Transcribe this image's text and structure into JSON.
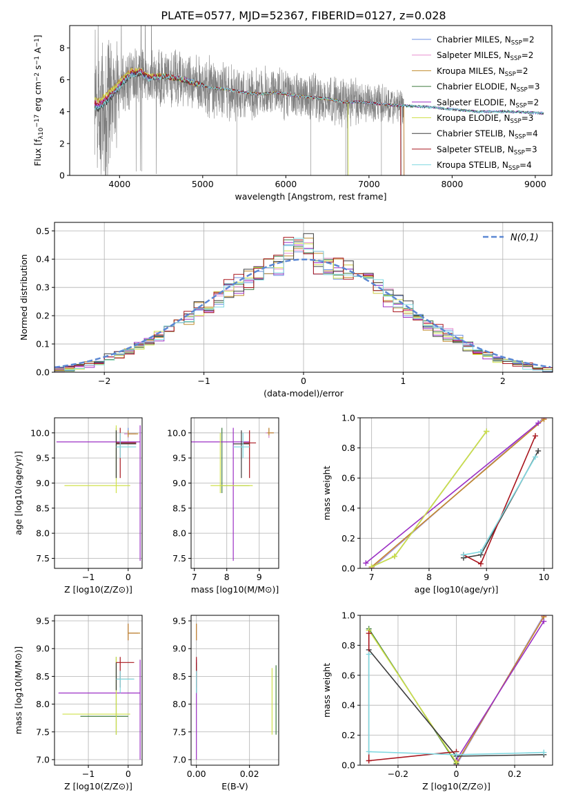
{
  "figure": {
    "title": "PLATE=0577, MJD=52367, FIBERID=0127, z=0.028"
  },
  "colors": {
    "series": [
      "#6b8fe0",
      "#e88fcf",
      "#c08a2a",
      "#3d7a3d",
      "#9b2fc4",
      "#cfe04a",
      "#3c3c3c",
      "#a8141c",
      "#7fd8e0"
    ],
    "data": "#808080",
    "grid": "#b0b0b0",
    "normal": "#5b87d3"
  },
  "chart_data": [
    {
      "id": "spectrum",
      "type": "line",
      "xlabel": "wavelength [Angstrom, rest frame]",
      "ylabel": "Flux [f_λ10^-17 erg cm^-2 s^-1 A^-1]",
      "xlim": [
        3400,
        9200
      ],
      "ylim": [
        0,
        9.4
      ],
      "xticks": [
        4000,
        5000,
        6000,
        7000,
        8000,
        9000
      ],
      "yticks": [
        0,
        2,
        4,
        6,
        8
      ],
      "grid": false,
      "legend_position": "top-right",
      "legend": [
        "Chabrier MILES, N_SSP=2",
        "Salpeter MILES, N_SSP=2",
        "Kroupa MILES, N_SSP=2",
        "Chabrier ELODIE, N_SSP=3",
        "Salpeter ELODIE, N_SSP=2",
        "Kroupa ELODIE, N_SSP=3",
        "Chabrier STELIB, N_SSP=4",
        "Salpeter STELIB, N_SSP=3",
        "Kroupa STELIB, N_SSP=4"
      ],
      "data_range": [
        3700,
        7420
      ],
      "model_ranges": [
        [
          3700,
          7420
        ],
        [
          3700,
          7420
        ],
        [
          3700,
          7420
        ],
        [
          3700,
          9100
        ],
        [
          3700,
          9100
        ],
        [
          3700,
          6750
        ],
        [
          3700,
          9100
        ],
        [
          3700,
          7380
        ],
        [
          3700,
          9100
        ]
      ],
      "continuum": {
        "x": [
          3700,
          3750,
          3850,
          3950,
          4050,
          4150,
          4250,
          4350,
          4450,
          4550,
          4700,
          4900,
          5100,
          5300,
          5500,
          5700,
          5900,
          6100,
          6300,
          6500,
          6700,
          6900,
          7100,
          7300,
          7500,
          7700,
          7900,
          8100,
          8300,
          8500,
          8700,
          8900,
          9100
        ],
        "y": [
          4.0,
          3.9,
          4.4,
          5.0,
          5.7,
          6.2,
          6.3,
          6.0,
          6.1,
          6.2,
          6.1,
          5.8,
          5.5,
          5.4,
          5.2,
          5.1,
          5.2,
          5.0,
          4.9,
          4.8,
          4.6,
          4.6,
          4.5,
          4.4,
          4.35,
          4.3,
          4.2,
          4.1,
          4.0,
          4.0,
          4.0,
          3.95,
          3.9
        ]
      }
    },
    {
      "id": "residuals",
      "type": "histogram",
      "xlabel": "(data-model)/error",
      "ylabel": "Normed distribution",
      "xlim": [
        -2.5,
        2.5
      ],
      "ylim": [
        0,
        0.53
      ],
      "xticks": [
        -2,
        -1,
        0,
        1,
        2
      ],
      "yticks": [
        0.0,
        0.1,
        0.2,
        0.3,
        0.4,
        0.5
      ],
      "grid": true,
      "legend_position": "top-right",
      "legend": [
        "N(0,1)"
      ],
      "bin_width": 0.1
    },
    {
      "id": "z-age",
      "type": "scatter",
      "xlabel": "Z [log10(Z/Z⊙)]",
      "ylabel": "age [log10(age/yr)]",
      "xlim": [
        -1.85,
        0.35
      ],
      "ylim": [
        7.3,
        10.3
      ],
      "xticks": [
        -1,
        0
      ],
      "yticks": [
        7.5,
        8.0,
        8.5,
        9.0,
        9.5,
        10.0
      ],
      "grid": true,
      "points": [
        {
          "s": 0,
          "x": 0,
          "y": 9.98,
          "ex": [
            -0.1,
            0.2
          ],
          "ey": [
            9.9,
            10.1
          ]
        },
        {
          "s": 1,
          "x": 0,
          "y": 9.98,
          "ex": [
            -0.1,
            0.2
          ],
          "ey": [
            9.9,
            10.05
          ]
        },
        {
          "s": 2,
          "x": 0,
          "y": 9.98,
          "ex": [
            0.0,
            0.25
          ],
          "ey": [
            9.92,
            10.05
          ]
        },
        {
          "s": 3,
          "x": -0.3,
          "y": 9.8,
          "ex": [
            -0.3,
            0.2
          ],
          "ey": [
            9.1,
            10.1
          ]
        },
        {
          "s": 4,
          "x": 0.3,
          "y": 9.82,
          "ex": [
            -1.8,
            0.3
          ],
          "ey": [
            7.45,
            10.15
          ]
        },
        {
          "s": 5,
          "x": -0.3,
          "y": 8.95,
          "ex": [
            -1.6,
            0.05
          ],
          "ey": [
            8.8,
            10.15
          ]
        },
        {
          "s": 6,
          "x": -0.3,
          "y": 9.78,
          "ex": [
            -0.3,
            0.2
          ],
          "ey": [
            9.1,
            10.05
          ]
        },
        {
          "s": 7,
          "x": -0.2,
          "y": 9.8,
          "ex": [
            -0.3,
            0.2
          ],
          "ey": [
            9.1,
            10.1
          ]
        },
        {
          "s": 8,
          "x": -0.2,
          "y": 9.72,
          "ex": [
            -0.3,
            0.2
          ],
          "ey": [
            9.5,
            10.0
          ]
        }
      ]
    },
    {
      "id": "mass-age",
      "type": "scatter",
      "xlabel": "mass [log10(M/M⊙)]",
      "ylabel": "",
      "xlim": [
        6.9,
        9.6
      ],
      "ylim": [
        7.3,
        10.3
      ],
      "xticks": [
        7,
        8,
        9
      ],
      "yticks": [
        7.5,
        8.0,
        8.5,
        9.0,
        9.5,
        10.0
      ],
      "grid": true,
      "points": [
        {
          "s": 0,
          "x": 9.3,
          "y": 10.0,
          "ex": [
            9.2,
            9.45
          ],
          "ey": [
            9.9,
            10.1
          ]
        },
        {
          "s": 1,
          "x": 9.3,
          "y": 10.0,
          "ex": [
            9.2,
            9.45
          ],
          "ey": [
            9.9,
            10.1
          ]
        },
        {
          "s": 2,
          "x": 9.3,
          "y": 10.0,
          "ex": [
            9.25,
            9.45
          ],
          "ey": [
            9.95,
            10.1
          ]
        },
        {
          "s": 3,
          "x": 7.85,
          "y": 8.95,
          "ex": [
            7.8,
            8.7
          ],
          "ey": [
            8.8,
            10.1
          ]
        },
        {
          "s": 4,
          "x": 8.2,
          "y": 9.82,
          "ex": [
            6.9,
            8.7
          ],
          "ey": [
            7.45,
            10.1
          ]
        },
        {
          "s": 5,
          "x": 7.8,
          "y": 8.95,
          "ex": [
            7.5,
            8.8
          ],
          "ey": [
            8.8,
            10.0
          ]
        },
        {
          "s": 6,
          "x": 8.45,
          "y": 9.78,
          "ex": [
            8.2,
            8.7
          ],
          "ey": [
            9.1,
            10.05
          ]
        },
        {
          "s": 7,
          "x": 8.7,
          "y": 9.8,
          "ex": [
            8.5,
            8.9
          ],
          "ey": [
            9.1,
            10.05
          ]
        },
        {
          "s": 8,
          "x": 8.5,
          "y": 9.72,
          "ex": [
            8.2,
            8.7
          ],
          "ey": [
            9.5,
            10.0
          ]
        }
      ]
    },
    {
      "id": "age-weight",
      "type": "line",
      "xlabel": "age [log10(age/yr)]",
      "ylabel": "mass weight",
      "xlim": [
        6.8,
        10.15
      ],
      "ylim": [
        0,
        1.0
      ],
      "xticks": [
        7,
        8,
        9,
        10
      ],
      "yticks": [
        0.0,
        0.2,
        0.4,
        0.6,
        0.8,
        1.0
      ],
      "grid": true,
      "series": [
        {
          "s": 0,
          "x": [
            7.0,
            10.0
          ],
          "y": [
            0.0,
            1.0
          ]
        },
        {
          "s": 1,
          "x": [
            7.0,
            10.0
          ],
          "y": [
            0.005,
            0.995
          ]
        },
        {
          "s": 2,
          "x": [
            7.0,
            10.0
          ],
          "y": [
            0.01,
            0.99
          ]
        },
        {
          "s": 3,
          "x": [
            7.0,
            7.4,
            9.0
          ],
          "y": [
            0.01,
            0.08,
            0.91
          ]
        },
        {
          "s": 4,
          "x": [
            6.9,
            9.9
          ],
          "y": [
            0.035,
            0.965
          ]
        },
        {
          "s": 5,
          "x": [
            7.0,
            7.4,
            9.0
          ],
          "y": [
            0.01,
            0.08,
            0.91
          ]
        },
        {
          "s": 6,
          "x": [
            8.6,
            8.9,
            9.9
          ],
          "y": [
            0.07,
            0.09,
            0.78
          ]
        },
        {
          "s": 7,
          "x": [
            8.6,
            8.9,
            9.85
          ],
          "y": [
            0.09,
            0.03,
            0.88
          ]
        },
        {
          "s": 8,
          "x": [
            8.6,
            8.9,
            9.85
          ],
          "y": [
            0.09,
            0.11,
            0.74
          ]
        }
      ]
    },
    {
      "id": "z-mass",
      "type": "scatter",
      "xlabel": "Z [log10(Z/Z⊙)]",
      "ylabel": "mass [log10(M/M⊙)]",
      "xlim": [
        -1.85,
        0.35
      ],
      "ylim": [
        6.9,
        9.6
      ],
      "xticks": [
        -1,
        0
      ],
      "yticks": [
        7.0,
        7.5,
        8.0,
        8.5,
        9.0,
        9.5
      ],
      "grid": true,
      "points": [
        {
          "s": 0,
          "x": 0,
          "y": 9.28,
          "ex": [
            0.0,
            0.25
          ],
          "ey": [
            9.15,
            9.45
          ]
        },
        {
          "s": 1,
          "x": 0,
          "y": 9.28,
          "ex": [
            0.0,
            0.25
          ],
          "ey": [
            9.15,
            9.45
          ]
        },
        {
          "s": 2,
          "x": 0,
          "y": 9.28,
          "ex": [
            0.0,
            0.3
          ],
          "ey": [
            9.15,
            9.45
          ]
        },
        {
          "s": 3,
          "x": -0.3,
          "y": 7.78,
          "ex": [
            -1.2,
            0.0
          ],
          "ey": [
            7.45,
            8.85
          ]
        },
        {
          "s": 4,
          "x": 0.3,
          "y": 8.2,
          "ex": [
            -1.75,
            0.3
          ],
          "ey": [
            7.0,
            8.8
          ]
        },
        {
          "s": 5,
          "x": -0.3,
          "y": 7.82,
          "ex": [
            -1.65,
            0.05
          ],
          "ey": [
            7.45,
            8.85
          ]
        },
        {
          "s": 6,
          "x": -0.3,
          "y": 8.45,
          "ex": [
            -0.3,
            0.15
          ],
          "ey": [
            8.25,
            8.75
          ]
        },
        {
          "s": 7,
          "x": -0.2,
          "y": 8.75,
          "ex": [
            -0.3,
            0.15
          ],
          "ey": [
            8.3,
            8.85
          ]
        },
        {
          "s": 8,
          "x": -0.2,
          "y": 8.45,
          "ex": [
            -0.3,
            0.15
          ],
          "ey": [
            8.2,
            8.6
          ]
        }
      ]
    },
    {
      "id": "ebv-mass",
      "type": "scatter",
      "xlabel": "E(B-V)",
      "ylabel": "",
      "xlim": [
        -0.002,
        0.031
      ],
      "ylim": [
        6.9,
        9.6
      ],
      "xticks": [
        0.0,
        0.02
      ],
      "xtick_labels": [
        "0.00",
        "0.02"
      ],
      "yticks": [
        7.0,
        7.5,
        8.0,
        8.5,
        9.0,
        9.5
      ],
      "grid": true,
      "points": [
        {
          "s": 0,
          "x": 0.0,
          "y": 9.3,
          "ex": [
            0,
            0
          ],
          "ey": [
            9.15,
            9.45
          ]
        },
        {
          "s": 1,
          "x": 0.0,
          "y": 9.3,
          "ex": [
            0,
            0
          ],
          "ey": [
            9.15,
            9.45
          ]
        },
        {
          "s": 2,
          "x": 0.0,
          "y": 9.3,
          "ex": [
            0,
            0
          ],
          "ey": [
            9.15,
            9.45
          ]
        },
        {
          "s": 3,
          "x": 0.03,
          "y": 8.1,
          "ex": [
            0,
            0
          ],
          "ey": [
            7.45,
            8.7
          ]
        },
        {
          "s": 4,
          "x": 0.0,
          "y": 7.9,
          "ex": [
            0,
            0
          ],
          "ey": [
            7.0,
            8.8
          ]
        },
        {
          "s": 5,
          "x": 0.0285,
          "y": 8.0,
          "ex": [
            0,
            0
          ],
          "ey": [
            7.45,
            8.65
          ]
        },
        {
          "s": 6,
          "x": 0.0,
          "y": 8.4,
          "ex": [
            0,
            0
          ],
          "ey": [
            8.2,
            8.75
          ]
        },
        {
          "s": 7,
          "x": 0.0,
          "y": 8.6,
          "ex": [
            0,
            0
          ],
          "ey": [
            8.3,
            8.85
          ]
        },
        {
          "s": 8,
          "x": 0.0,
          "y": 8.4,
          "ex": [
            0,
            0
          ],
          "ey": [
            8.2,
            8.6
          ]
        }
      ]
    },
    {
      "id": "z-weight",
      "type": "line",
      "xlabel": "Z [log10(Z/Z⊙)]",
      "ylabel": "mass weight",
      "xlim": [
        -0.33,
        0.33
      ],
      "ylim": [
        0,
        1.0
      ],
      "xticks": [
        -0.2,
        0.0,
        0.2
      ],
      "yticks": [
        0.0,
        0.2,
        0.4,
        0.6,
        0.8,
        1.0
      ],
      "grid": true,
      "series": [
        {
          "s": 0,
          "x": [
            0.0,
            0.3
          ],
          "y": [
            0.0,
            1.0
          ]
        },
        {
          "s": 1,
          "x": [
            0.0,
            0.3
          ],
          "y": [
            0.005,
            0.995
          ]
        },
        {
          "s": 2,
          "x": [
            0.0,
            0.3
          ],
          "y": [
            0.01,
            0.99
          ]
        },
        {
          "s": 3,
          "x": [
            -0.3,
            0.0
          ],
          "y": [
            0.91,
            0.01
          ]
        },
        {
          "s": 4,
          "x": [
            0.0,
            0.3
          ],
          "y": [
            0.035,
            0.96
          ]
        },
        {
          "s": 5,
          "x": [
            -0.3,
            0.0
          ],
          "y": [
            0.9,
            0.02
          ]
        },
        {
          "s": 6,
          "x": [
            -0.3,
            0.0,
            0.3
          ],
          "y": [
            0.77,
            0.06,
            0.07
          ]
        },
        {
          "s": 7,
          "x": [
            -0.3,
            -0.3,
            0.0
          ],
          "y": [
            0.88,
            0.03,
            0.09
          ]
        },
        {
          "s": 8,
          "x": [
            -0.3,
            -0.3,
            0.0,
            0.3
          ],
          "y": [
            0.74,
            0.09,
            0.07,
            0.085
          ]
        }
      ]
    }
  ]
}
